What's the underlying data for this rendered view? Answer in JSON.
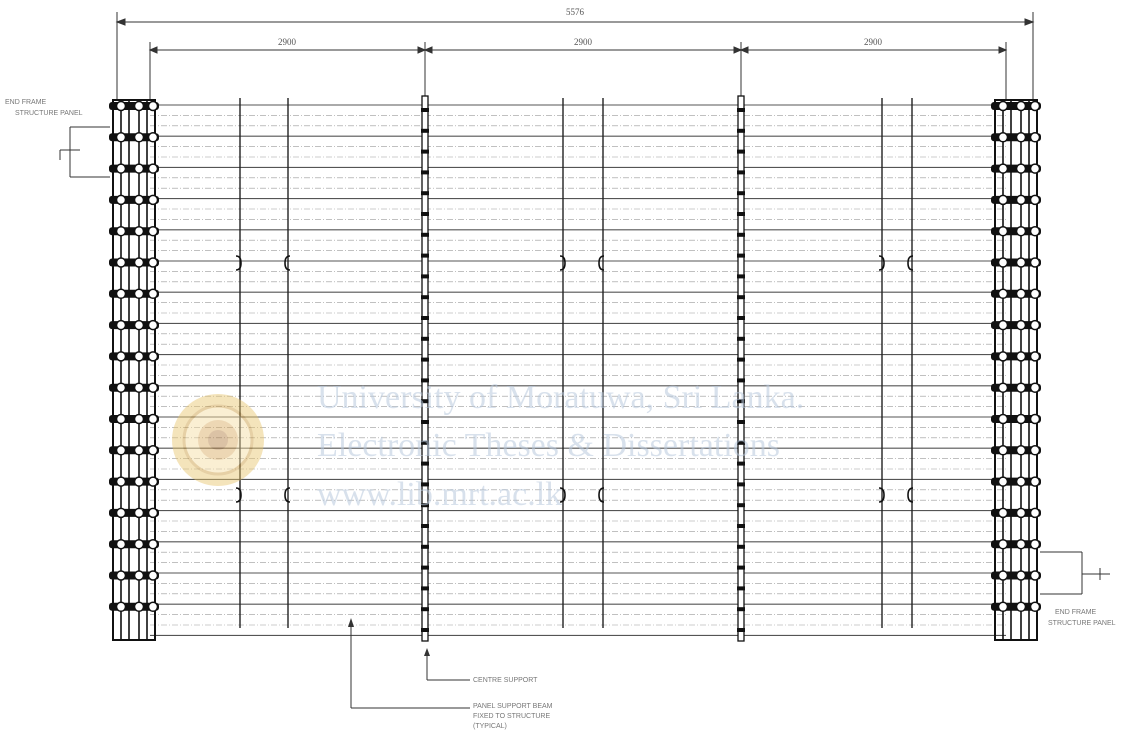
{
  "dimensions": {
    "overall": "5576",
    "bays": [
      "2900",
      "2900",
      "2900"
    ]
  },
  "notes": {
    "left_top": [
      "END FRAME",
      "STRUCTURE PANEL"
    ],
    "right_bottom": [
      "END FRAME",
      "STRUCTURE PANEL"
    ],
    "center_marker": "CENTRE SUPPORT",
    "bottom_note": [
      "PANEL SUPPORT BEAM",
      "FIXED TO STRUCTURE",
      "(TYPICAL)"
    ]
  },
  "watermark": {
    "line1": "University of Moratuwa, Sri Lanka.",
    "line2": "Electronic Theses & Dissertations",
    "line3": "www.lib.mrt.ac.lk"
  },
  "seal_icon": "university-seal-icon"
}
